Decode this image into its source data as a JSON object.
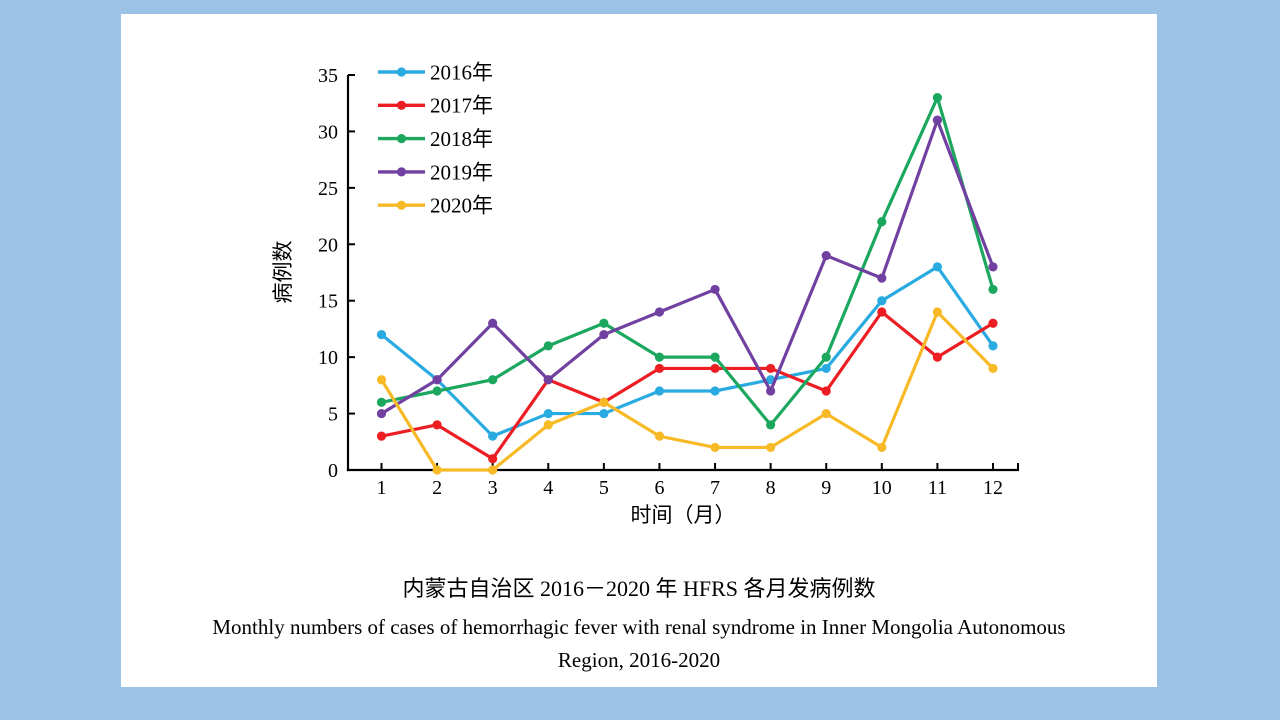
{
  "colors": {
    "slide_background": "#9CC3E6",
    "panel_background": "#FFFFFF",
    "axis": "#000000"
  },
  "chart_data": {
    "type": "line",
    "x": [
      1,
      2,
      3,
      4,
      5,
      6,
      7,
      8,
      9,
      10,
      11,
      12
    ],
    "xlabel": "时间（月）",
    "ylabel": "病例数",
    "ylim": [
      0,
      35
    ],
    "ytick_step": 5,
    "grid": false,
    "legend_position": "top-left-inside",
    "marker": "circle",
    "series": [
      {
        "name": "2016年",
        "color": "#29ABE2",
        "values": [
          12,
          8,
          3,
          5,
          5,
          7,
          7,
          8,
          9,
          15,
          18,
          11
        ]
      },
      {
        "name": "2017年",
        "color": "#EC1E24",
        "values": [
          3,
          4,
          1,
          8,
          6,
          9,
          9,
          9,
          7,
          14,
          10,
          13
        ]
      },
      {
        "name": "2018年",
        "color": "#1BA75E",
        "values": [
          6,
          7,
          8,
          11,
          13,
          10,
          10,
          4,
          10,
          22,
          33,
          16
        ]
      },
      {
        "name": "2019年",
        "color": "#7141A1",
        "values": [
          5,
          8,
          13,
          8,
          12,
          14,
          16,
          7,
          19,
          17,
          31,
          18
        ]
      },
      {
        "name": "2020年",
        "color": "#F7BA26",
        "values": [
          8,
          0,
          0,
          4,
          6,
          3,
          2,
          2,
          5,
          2,
          14,
          9
        ]
      }
    ]
  },
  "captions": {
    "chinese": "内蒙古自治区 2016－2020 年 HFRS 各月发病例数",
    "english_line1": "Monthly numbers of cases of hemorrhagic fever with renal syndrome in Inner Mongolia Autonomous",
    "english_line2": "Region, 2016-2020"
  }
}
